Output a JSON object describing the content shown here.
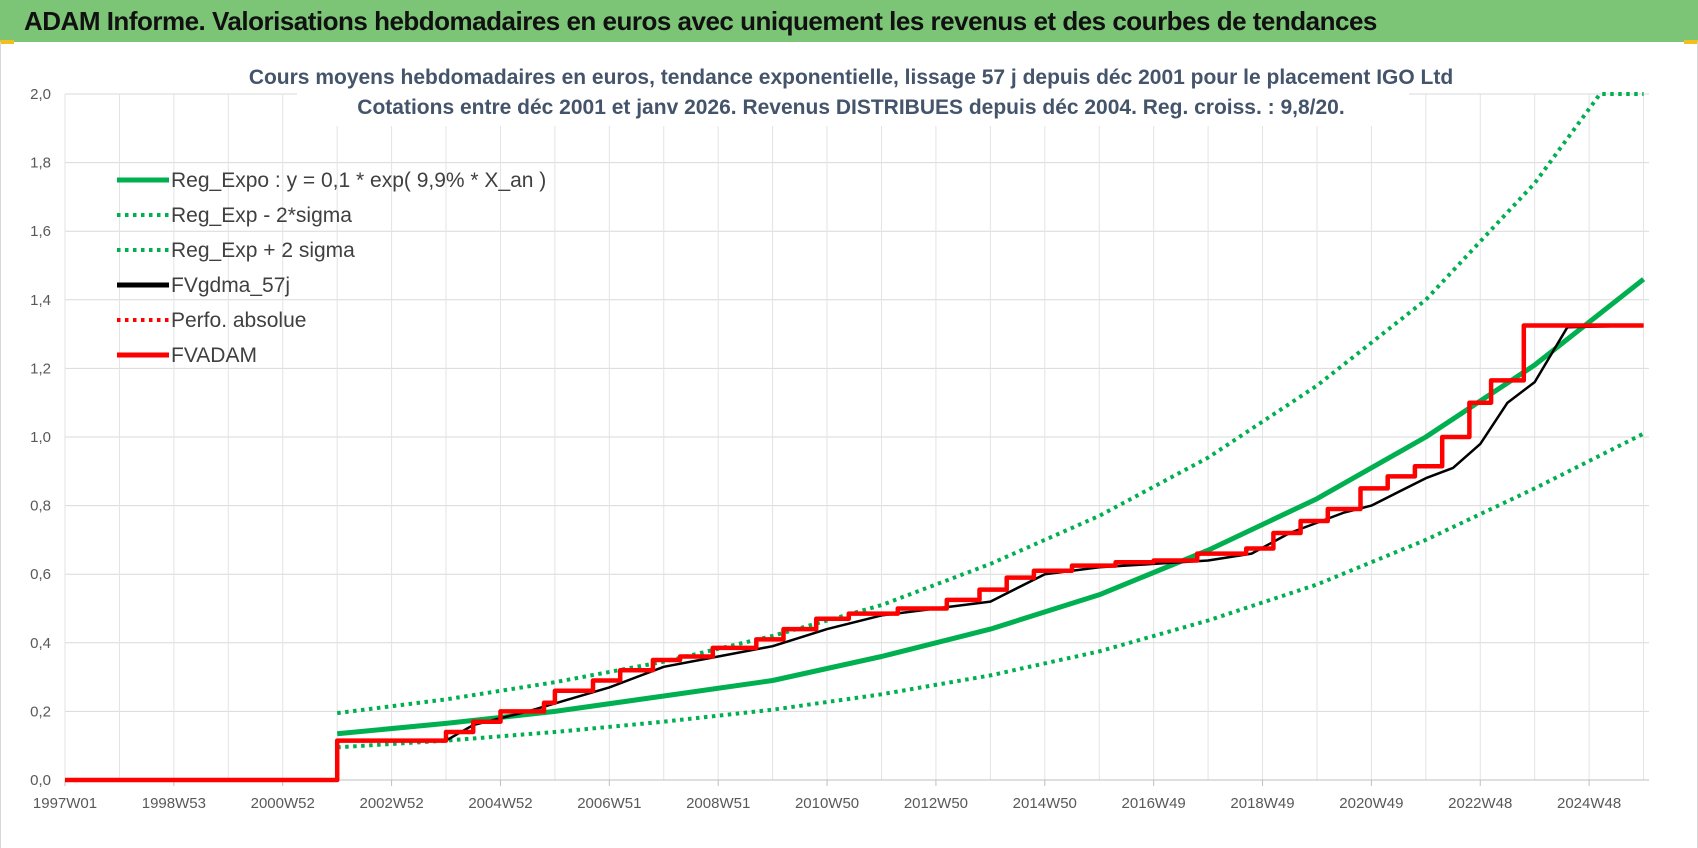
{
  "header": {
    "title": "ADAM Informe. Valorisations hebdomadaires en euros avec uniquement les revenus et des courbes de tendances"
  },
  "chart_data": {
    "type": "line",
    "title_lines": [
      "Cours moyens hebdomadaires en euros, tendance exponentielle, lissage 57 j depuis déc 2001 pour le placement IGO Ltd",
      "Cotations entre déc 2001 et janv 2026.  Revenus DISTRIBUES depuis déc 2004. Reg. croiss. : 9,8/20."
    ],
    "xlabel": "",
    "ylabel": "",
    "x_ticks": [
      "1997W01",
      "1998W53",
      "2000W52",
      "2002W52",
      "2004W52",
      "2006W51",
      "2008W51",
      "2010W50",
      "2012W50",
      "2014W50",
      "2016W49",
      "2018W49",
      "2020W49",
      "2022W48",
      "2024W48"
    ],
    "xlim": [
      1997.0,
      2026.1
    ],
    "y_ticks": [
      "0,0",
      "0,2",
      "0,4",
      "0,6",
      "0,8",
      "1,0",
      "1,2",
      "1,4",
      "1,6",
      "1,8",
      "2,0"
    ],
    "ylim": [
      0,
      2.0
    ],
    "grid": true,
    "legend_position": "top-left",
    "colors": {
      "green": "#00b050",
      "black": "#000000",
      "red": "#ff0000"
    },
    "series": [
      {
        "name": "Reg_Expo : y = 0,1 * exp( 9,9% *  X_an )",
        "style": "solid",
        "color": "#00b050",
        "x": [
          2002.0,
          2004.0,
          2006.0,
          2008.0,
          2010.0,
          2012.0,
          2014.0,
          2016.0,
          2018.0,
          2020.0,
          2022.0,
          2024.0,
          2026.0
        ],
        "y": [
          0.135,
          0.165,
          0.2,
          0.245,
          0.29,
          0.36,
          0.44,
          0.54,
          0.67,
          0.82,
          1.0,
          1.21,
          1.46
        ]
      },
      {
        "name": "Reg_Exp - 2*sigma",
        "style": "dotted",
        "color": "#00b050",
        "x": [
          2002.0,
          2004.0,
          2006.0,
          2008.0,
          2010.0,
          2012.0,
          2014.0,
          2016.0,
          2018.0,
          2020.0,
          2022.0,
          2024.0,
          2026.0
        ],
        "y": [
          0.095,
          0.115,
          0.14,
          0.17,
          0.205,
          0.25,
          0.305,
          0.375,
          0.465,
          0.57,
          0.7,
          0.85,
          1.01
        ]
      },
      {
        "name": "Reg_Exp + 2 sigma",
        "style": "dotted",
        "color": "#00b050",
        "x": [
          2002.0,
          2004.0,
          2006.0,
          2008.0,
          2010.0,
          2012.0,
          2014.0,
          2016.0,
          2018.0,
          2020.0,
          2022.0,
          2024.0,
          2025.2,
          2026.0
        ],
        "y": [
          0.195,
          0.235,
          0.285,
          0.345,
          0.42,
          0.51,
          0.63,
          0.77,
          0.94,
          1.15,
          1.4,
          1.74,
          2.0,
          2.0
        ]
      },
      {
        "name": "FVgdma_57j",
        "style": "solid",
        "color": "#000000",
        "x": [
          1997.0,
          2002.0,
          2002.0,
          2004.0,
          2004.5,
          2005.5,
          2007.0,
          2008.0,
          2009.0,
          2010.0,
          2011.0,
          2012.0,
          2013.0,
          2014.0,
          2015.0,
          2016.0,
          2017.0,
          2018.0,
          2018.8,
          2019.5,
          2020.5,
          2021.0,
          2022.0,
          2022.5,
          2023.0,
          2023.5,
          2024.0,
          2024.6,
          2026.0
        ],
        "y": [
          0.0,
          0.0,
          0.115,
          0.115,
          0.16,
          0.2,
          0.27,
          0.33,
          0.36,
          0.39,
          0.44,
          0.48,
          0.5,
          0.52,
          0.6,
          0.62,
          0.63,
          0.64,
          0.66,
          0.72,
          0.78,
          0.8,
          0.88,
          0.91,
          0.98,
          1.1,
          1.16,
          1.32,
          1.325
        ]
      },
      {
        "name": "Perfo. absolue",
        "style": "dotted",
        "color": "#ff0000",
        "x": [
          1997.0,
          2002.0,
          2002.0,
          2004.0
        ],
        "y": [
          0.0,
          0.0,
          0.115,
          0.115
        ]
      },
      {
        "name": "FVADAM",
        "style": "step",
        "color": "#ff0000",
        "x": [
          1997.0,
          2002.0,
          2002.0,
          2004.0,
          2004.0,
          2004.5,
          2004.5,
          2005.0,
          2005.0,
          2005.8,
          2005.8,
          2006.0,
          2006.0,
          2006.7,
          2006.7,
          2007.2,
          2007.2,
          2007.8,
          2007.8,
          2008.3,
          2008.3,
          2008.9,
          2008.9,
          2009.7,
          2009.7,
          2010.2,
          2010.2,
          2010.8,
          2010.8,
          2011.4,
          2011.4,
          2012.3,
          2012.3,
          2013.2,
          2013.2,
          2013.8,
          2013.8,
          2014.3,
          2014.3,
          2014.8,
          2014.8,
          2015.5,
          2015.5,
          2016.3,
          2016.3,
          2017.0,
          2017.0,
          2017.8,
          2017.8,
          2018.7,
          2018.7,
          2019.2,
          2019.2,
          2019.7,
          2019.7,
          2020.2,
          2020.2,
          2020.8,
          2020.8,
          2021.3,
          2021.3,
          2021.8,
          2021.8,
          2022.3,
          2022.3,
          2022.8,
          2022.8,
          2023.2,
          2023.2,
          2023.8,
          2023.8,
          2024.4,
          2024.4,
          2026.0
        ],
        "y": [
          0.0,
          0.0,
          0.115,
          0.115,
          0.14,
          0.14,
          0.17,
          0.17,
          0.2,
          0.2,
          0.225,
          0.225,
          0.26,
          0.26,
          0.29,
          0.29,
          0.32,
          0.32,
          0.35,
          0.35,
          0.36,
          0.36,
          0.385,
          0.385,
          0.41,
          0.41,
          0.44,
          0.44,
          0.47,
          0.47,
          0.485,
          0.485,
          0.5,
          0.5,
          0.525,
          0.525,
          0.555,
          0.555,
          0.59,
          0.59,
          0.61,
          0.61,
          0.625,
          0.625,
          0.635,
          0.635,
          0.64,
          0.64,
          0.66,
          0.66,
          0.675,
          0.675,
          0.72,
          0.72,
          0.755,
          0.755,
          0.79,
          0.79,
          0.85,
          0.85,
          0.885,
          0.885,
          0.915,
          0.915,
          1.0,
          1.0,
          1.1,
          1.1,
          1.165,
          1.165,
          1.325,
          1.325,
          1.325,
          1.325
        ]
      }
    ]
  }
}
